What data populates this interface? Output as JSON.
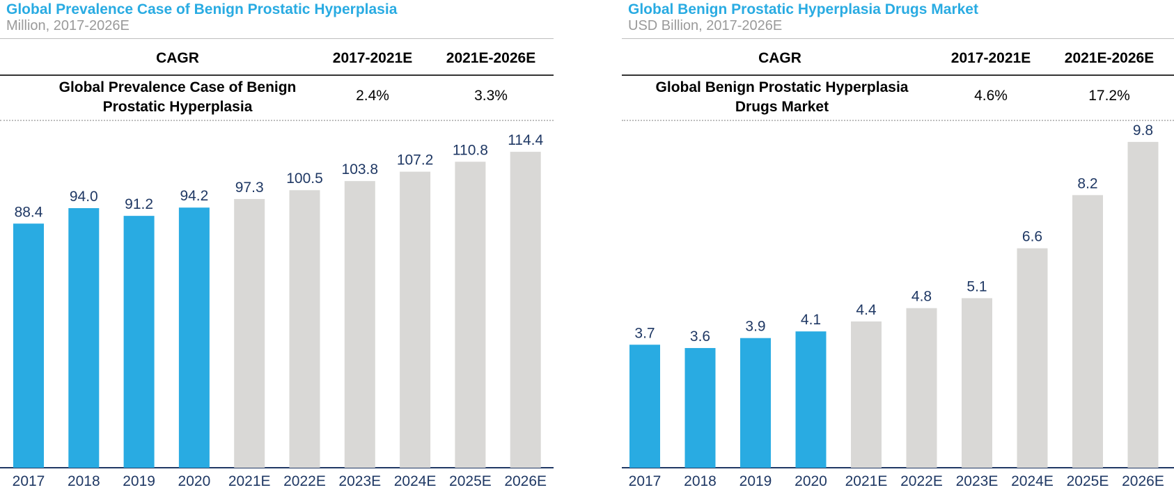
{
  "chart_data": [
    {
      "type": "bar",
      "title": "Global Prevalence Case of Benign Prostatic Hyperplasia",
      "subtitle": "Million, 2017-2026E",
      "cagr_table": {
        "header": [
          "CAGR",
          "2017-2021E",
          "2021E-2026E"
        ],
        "row_label": "Global Prevalence Case of Benign Prostatic Hyperplasia",
        "row_values": [
          "2.4%",
          "3.3%"
        ]
      },
      "categories": [
        "2017",
        "2018",
        "2019",
        "2020",
        "2021E",
        "2022E",
        "2023E",
        "2024E",
        "2025E",
        "2026E"
      ],
      "values": [
        88.4,
        94.0,
        91.2,
        94.2,
        97.3,
        100.5,
        103.8,
        107.2,
        110.8,
        114.4
      ],
      "labels": [
        "88.4",
        "94.0",
        "91.2",
        "94.2",
        "97.3",
        "100.5",
        "103.8",
        "107.2",
        "110.8",
        "114.4"
      ],
      "ylim": [
        0,
        124
      ],
      "grid": false,
      "colors": {
        "actual": "#29ABE2",
        "estimate": "#D9D8D6",
        "label": "#1F3864",
        "axis": "#1F3864"
      },
      "actual_count": 4
    },
    {
      "type": "bar",
      "title": "Global Benign Prostatic Hyperplasia Drugs Market",
      "subtitle": "USD Billion, 2017-2026E",
      "cagr_table": {
        "header": [
          "CAGR",
          "2017-2021E",
          "2021E-2026E"
        ],
        "row_label": "Global Benign Prostatic Hyperplasia Drugs Market",
        "row_values": [
          "4.6%",
          "17.2%"
        ]
      },
      "categories": [
        "2017",
        "2018",
        "2019",
        "2020",
        "2021E",
        "2022E",
        "2023E",
        "2024E",
        "2025E",
        "2026E"
      ],
      "values": [
        3.7,
        3.6,
        3.9,
        4.1,
        4.4,
        4.8,
        5.1,
        6.6,
        8.2,
        9.8
      ],
      "labels": [
        "3.7",
        "3.6",
        "3.9",
        "4.1",
        "4.4",
        "4.8",
        "5.1",
        "6.6",
        "8.2",
        "9.8"
      ],
      "ylim": [
        0,
        10.3
      ],
      "grid": false,
      "colors": {
        "actual": "#29ABE2",
        "estimate": "#D9D8D6",
        "label": "#1F3864",
        "axis": "#1F3864"
      },
      "actual_count": 4
    }
  ]
}
